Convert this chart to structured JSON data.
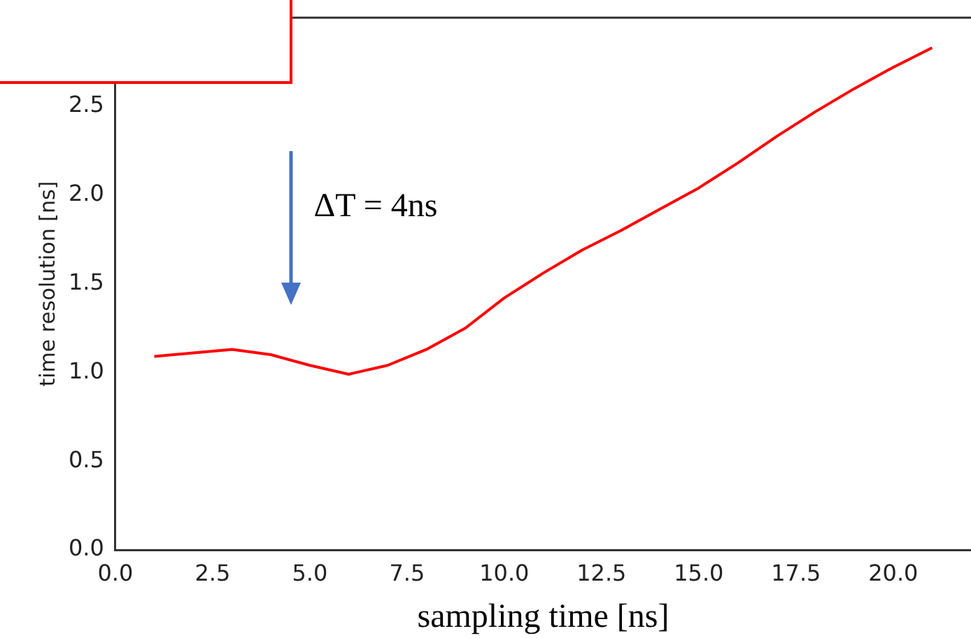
{
  "chart_data": {
    "type": "line",
    "xlabel": "sampling time [ns]",
    "ylabel": "time resolution [ns]",
    "x": [
      1,
      2,
      3,
      4,
      5,
      6,
      7,
      8,
      9,
      10,
      11,
      12,
      13,
      14,
      15,
      16,
      17,
      18,
      19,
      20,
      21
    ],
    "series": [
      {
        "color": "#ff0000",
        "values": [
          1.09,
          1.11,
          1.13,
          1.1,
          1.04,
          0.99,
          1.04,
          1.13,
          1.25,
          1.42,
          1.56,
          1.69,
          1.8,
          1.92,
          2.04,
          2.18,
          2.33,
          2.47,
          2.6,
          2.72,
          2.83
        ]
      }
    ],
    "xlim": [
      0,
      22
    ],
    "ylim": [
      0,
      3.0
    ],
    "xticks": [
      {
        "value": 0,
        "label": "0.0"
      },
      {
        "value": 2.5,
        "label": "2.5"
      },
      {
        "value": 5,
        "label": "5.0"
      },
      {
        "value": 7.5,
        "label": "7.5"
      },
      {
        "value": 10,
        "label": "10.0"
      },
      {
        "value": 12.5,
        "label": "12.5"
      },
      {
        "value": 15,
        "label": "15.0"
      },
      {
        "value": 17.5,
        "label": "17.5"
      },
      {
        "value": 20,
        "label": "20.0"
      }
    ],
    "yticks": [
      {
        "value": 0,
        "label": "0.0"
      },
      {
        "value": 0.5,
        "label": "0.5"
      },
      {
        "value": 1,
        "label": "1.0"
      },
      {
        "value": 1.5,
        "label": "1.5"
      },
      {
        "value": 2,
        "label": "2.0"
      },
      {
        "value": 2.5,
        "label": "2.5"
      }
    ],
    "annotations": [
      "ΔT = 4ns"
    ],
    "grid": false,
    "legend": false,
    "marker": "none",
    "line_style": "solid"
  }
}
